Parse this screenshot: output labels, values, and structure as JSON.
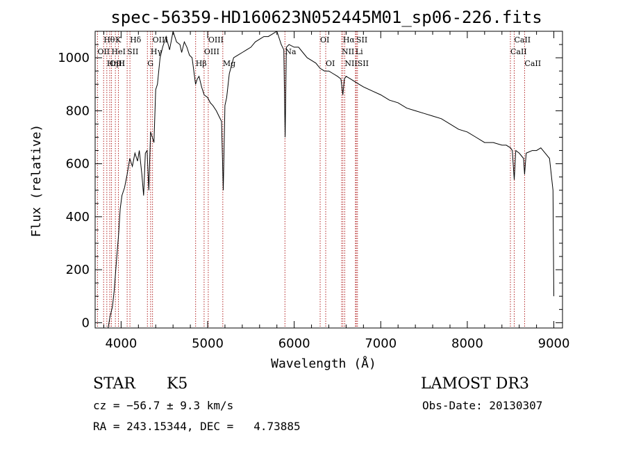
{
  "chart_data": {
    "type": "line",
    "title": "spec-56359-HD160623N052445M01_sp06-226.fits",
    "xlabel": "Wavelength (Å)",
    "ylabel": "Flux (relative)",
    "xlim": [
      3700,
      9100
    ],
    "ylim": [
      -20,
      1100
    ],
    "xticks": [
      4000,
      5000,
      6000,
      7000,
      8000,
      9000
    ],
    "yticks": [
      0,
      200,
      400,
      600,
      800,
      1000
    ],
    "grid": false,
    "series": [
      {
        "x": [
          3850,
          3870,
          3900,
          3920,
          3950,
          3970,
          3990,
          4010,
          4040,
          4070,
          4100,
          4130,
          4160,
          4190,
          4210,
          4240,
          4260,
          4280,
          4300,
          4320,
          4340,
          4360,
          4380,
          4400,
          4420,
          4450,
          4480,
          4520,
          4560,
          4600,
          4640,
          4680,
          4700,
          4730,
          4760,
          4790,
          4820,
          4860,
          4880,
          4900,
          4930,
          4960,
          5000,
          5030,
          5060,
          5100,
          5130,
          5160,
          5180,
          5200,
          5220,
          5250,
          5300,
          5350,
          5400,
          5450,
          5500,
          5550,
          5600,
          5650,
          5700,
          5750,
          5800,
          5850,
          5880,
          5895,
          5910,
          5940,
          6000,
          6050,
          6100,
          6150,
          6200,
          6250,
          6300,
          6350,
          6400,
          6450,
          6500,
          6540,
          6562,
          6580,
          6600,
          6650,
          6700,
          6750,
          6800,
          6900,
          7000,
          7100,
          7200,
          7300,
          7400,
          7500,
          7600,
          7700,
          7800,
          7900,
          8000,
          8100,
          8200,
          8300,
          8400,
          8450,
          8500,
          8520,
          8542,
          8560,
          8600,
          8650,
          8662,
          8680,
          8750,
          8800,
          8850,
          8900,
          8950,
          8990,
          9000
        ],
        "y": [
          -20,
          20,
          60,
          120,
          250,
          330,
          430,
          480,
          510,
          560,
          620,
          590,
          640,
          610,
          650,
          560,
          480,
          640,
          650,
          500,
          720,
          700,
          680,
          880,
          900,
          1000,
          1040,
          1080,
          1030,
          1100,
          1060,
          1050,
          1020,
          1060,
          1040,
          1010,
          1000,
          900,
          920,
          930,
          890,
          860,
          850,
          830,
          820,
          800,
          780,
          760,
          500,
          820,
          850,
          940,
          1000,
          1010,
          1020,
          1030,
          1040,
          1060,
          1070,
          1080,
          1080,
          1090,
          1100,
          1050,
          1030,
          700,
          1040,
          1050,
          1040,
          1040,
          1020,
          1000,
          990,
          980,
          960,
          950,
          950,
          940,
          930,
          920,
          860,
          920,
          930,
          920,
          910,
          900,
          890,
          875,
          860,
          840,
          830,
          810,
          800,
          790,
          780,
          770,
          750,
          730,
          720,
          700,
          680,
          680,
          670,
          670,
          660,
          650,
          540,
          650,
          640,
          620,
          560,
          640,
          650,
          650,
          660,
          640,
          620,
          500,
          100
        ]
      }
    ],
    "lines": [
      {
        "name": "Hθ",
        "x": 3798,
        "row": 0
      },
      {
        "name": "OII",
        "x": 3727,
        "row": 1
      },
      {
        "name": "OIII",
        "x": 3869,
        "row": 2
      },
      {
        "name": "K",
        "x": 3934,
        "row": 0
      },
      {
        "name": "HeI",
        "x": 3889,
        "row": 1
      },
      {
        "name": "Hη",
        "x": 3835,
        "row": 2
      },
      {
        "name": "H",
        "x": 3969,
        "row": 2
      },
      {
        "name": "SII",
        "x": 4070,
        "row": 1
      },
      {
        "name": "Hδ",
        "x": 4102,
        "row": 0
      },
      {
        "name": "OIII",
        "x": 4363,
        "row": 0
      },
      {
        "name": "Hγ",
        "x": 4341,
        "row": 1
      },
      {
        "name": "G",
        "x": 4304,
        "row": 2
      },
      {
        "name": "OIII",
        "x": 5007,
        "row": 0
      },
      {
        "name": "OIII",
        "x": 4959,
        "row": 1
      },
      {
        "name": "Hβ",
        "x": 4861,
        "row": 2
      },
      {
        "name": "Mg",
        "x": 5175,
        "row": 2
      },
      {
        "name": "Na",
        "x": 5893,
        "row": 1
      },
      {
        "name": "OI",
        "x": 6300,
        "row": 0
      },
      {
        "name": "OI",
        "x": 6364,
        "row": 2
      },
      {
        "name": "Hα",
        "x": 6563,
        "row": 0
      },
      {
        "name": "SII",
        "x": 6717,
        "row": 0
      },
      {
        "name": "NII",
        "x": 6548,
        "row": 1
      },
      {
        "name": "Li",
        "x": 6708,
        "row": 1
      },
      {
        "name": "NII",
        "x": 6584,
        "row": 2
      },
      {
        "name": "SII",
        "x": 6731,
        "row": 2
      },
      {
        "name": "CaII",
        "x": 8542,
        "row": 0
      },
      {
        "name": "CaII",
        "x": 8498,
        "row": 1
      },
      {
        "name": "CaII",
        "x": 8662,
        "row": 2
      }
    ]
  },
  "info": {
    "object_class": "STAR",
    "subclass": "K5",
    "survey": "LAMOST DR3",
    "cz": "cz = −56.7 ± 9.3 km/s",
    "obs_date": "Obs-Date: 20130307",
    "coords": "RA = 243.15344, DEC =   4.73885"
  },
  "colors": {
    "spectrum": "#000000",
    "line_markers": "#b22222"
  }
}
